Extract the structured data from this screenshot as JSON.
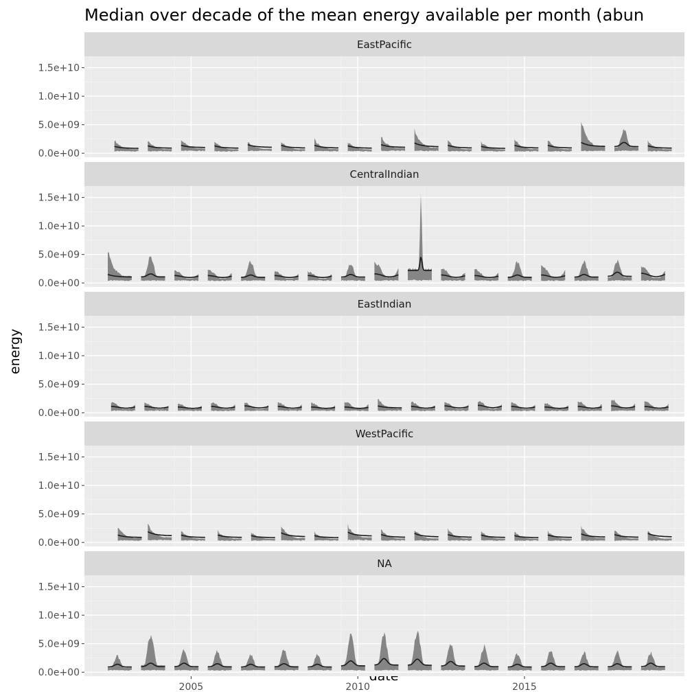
{
  "chart_data": {
    "type": "area",
    "title": "Median over decade of the mean energy available per month (abun",
    "xlabel": "date",
    "ylabel": "energy",
    "x_ticks": [
      "2005",
      "2010",
      "2015"
    ],
    "x_tick_years": [
      2005,
      2010,
      2015
    ],
    "xlim": [
      2001.8,
      2019.8
    ],
    "y_ticks": [
      "0.0e+00",
      "5.0e+09",
      "1.0e+10",
      "1.5e+10"
    ],
    "y_tick_values": [
      0,
      5000000000,
      10000000000,
      15000000000
    ],
    "ylim": [
      -700000000,
      17000000000
    ],
    "grid": true,
    "facets": [
      {
        "name": "EastPacific",
        "start_month": 6,
        "seasons": [
          {
            "year": 2002.7,
            "median": 1200000000.0,
            "low": 500000000.0,
            "high": 2300000000.0,
            "decay": "fall"
          },
          {
            "year": 2003.7,
            "median": 1300000000.0,
            "low": 500000000.0,
            "high": 2200000000.0,
            "decay": "fall"
          },
          {
            "year": 2004.7,
            "median": 1400000000.0,
            "low": 600000000.0,
            "high": 2500000000.0,
            "decay": "fall"
          },
          {
            "year": 2005.7,
            "median": 1300000000.0,
            "low": 500000000.0,
            "high": 2100000000.0,
            "decay": "fall"
          },
          {
            "year": 2006.7,
            "median": 1500000000.0,
            "low": 600000000.0,
            "high": 2000000000.0,
            "decay": "fall"
          },
          {
            "year": 2007.7,
            "median": 1400000000.0,
            "low": 500000000.0,
            "high": 2100000000.0,
            "decay": "fall"
          },
          {
            "year": 2008.7,
            "median": 1400000000.0,
            "low": 500000000.0,
            "high": 2400000000.0,
            "decay": "fall"
          },
          {
            "year": 2009.7,
            "median": 1300000000.0,
            "low": 500000000.0,
            "high": 2000000000.0,
            "decay": "fall"
          },
          {
            "year": 2010.7,
            "median": 1500000000.0,
            "low": 600000000.0,
            "high": 2900000000.0,
            "decay": "fall"
          },
          {
            "year": 2011.7,
            "median": 1800000000.0,
            "low": 600000000.0,
            "high": 4000000000.0,
            "decay": "fall"
          },
          {
            "year": 2012.7,
            "median": 1400000000.0,
            "low": 500000000.0,
            "high": 2200000000.0,
            "decay": "fall"
          },
          {
            "year": 2013.7,
            "median": 1200000000.0,
            "low": 500000000.0,
            "high": 2000000000.0,
            "decay": "fall"
          },
          {
            "year": 2014.7,
            "median": 1400000000.0,
            "low": 500000000.0,
            "high": 2500000000.0,
            "decay": "fall"
          },
          {
            "year": 2015.7,
            "median": 1400000000.0,
            "low": 500000000.0,
            "high": 2300000000.0,
            "decay": "fall"
          },
          {
            "year": 2016.7,
            "median": 1900000000.0,
            "low": 600000000.0,
            "high": 5500000000.0,
            "decay": "fall"
          },
          {
            "year": 2017.7,
            "median": 1900000000.0,
            "low": 600000000.0,
            "high": 4300000000.0,
            "decay": "peak"
          },
          {
            "year": 2018.7,
            "median": 1300000000.0,
            "low": 500000000.0,
            "high": 2100000000.0,
            "decay": "fall"
          }
        ]
      },
      {
        "name": "CentralIndian",
        "start_month": 6,
        "seasons": [
          {
            "year": 2002.5,
            "median": 1500000000.0,
            "low": 600000000.0,
            "high": 5500000000.0,
            "decay": "fall"
          },
          {
            "year": 2003.5,
            "median": 1600000000.0,
            "low": 600000000.0,
            "high": 4700000000.0,
            "decay": "peak"
          },
          {
            "year": 2004.5,
            "median": 1300000000.0,
            "low": 600000000.0,
            "high": 2200000000.0,
            "decay": "flat"
          },
          {
            "year": 2005.5,
            "median": 1300000000.0,
            "low": 600000000.0,
            "high": 2300000000.0,
            "decay": "flat"
          },
          {
            "year": 2006.5,
            "median": 1400000000.0,
            "low": 600000000.0,
            "high": 3700000000.0,
            "decay": "peak"
          },
          {
            "year": 2007.5,
            "median": 1300000000.0,
            "low": 600000000.0,
            "high": 2000000000.0,
            "decay": "flat"
          },
          {
            "year": 2008.5,
            "median": 1300000000.0,
            "low": 600000000.0,
            "high": 2000000000.0,
            "decay": "flat"
          },
          {
            "year": 2009.5,
            "median": 1500000000.0,
            "low": 600000000.0,
            "high": 3300000000.0,
            "decay": "peak"
          },
          {
            "year": 2010.5,
            "median": 1600000000.0,
            "low": 600000000.0,
            "high": 3500000000.0,
            "decay": "flat"
          },
          {
            "year": 2011.5,
            "median": 4600000000.0,
            "low": 700000000.0,
            "high": 14800000000.0,
            "decay": "spike"
          },
          {
            "year": 2012.5,
            "median": 1400000000.0,
            "low": 600000000.0,
            "high": 2600000000.0,
            "decay": "flat"
          },
          {
            "year": 2013.5,
            "median": 1300000000.0,
            "low": 600000000.0,
            "high": 2400000000.0,
            "decay": "flat"
          },
          {
            "year": 2014.5,
            "median": 1400000000.0,
            "low": 600000000.0,
            "high": 3600000000.0,
            "decay": "peak"
          },
          {
            "year": 2015.5,
            "median": 1400000000.0,
            "low": 600000000.0,
            "high": 3000000000.0,
            "decay": "flat"
          },
          {
            "year": 2016.5,
            "median": 1500000000.0,
            "low": 600000000.0,
            "high": 3700000000.0,
            "decay": "peak"
          },
          {
            "year": 2017.5,
            "median": 1900000000.0,
            "low": 600000000.0,
            "high": 3900000000.0,
            "decay": "peak"
          },
          {
            "year": 2018.5,
            "median": 1700000000.0,
            "low": 600000000.0,
            "high": 3000000000.0,
            "decay": "flat"
          }
        ]
      },
      {
        "name": "EastIndian",
        "start_month": 6,
        "seasons": [
          {
            "year": 2002.6,
            "median": 1100000000.0,
            "low": 500000000.0,
            "high": 1800000000.0,
            "decay": "flat"
          },
          {
            "year": 2003.6,
            "median": 1100000000.0,
            "low": 500000000.0,
            "high": 1700000000.0,
            "decay": "flat"
          },
          {
            "year": 2004.6,
            "median": 1000000000.0,
            "low": 500000000.0,
            "high": 1600000000.0,
            "decay": "flat"
          },
          {
            "year": 2005.6,
            "median": 1100000000.0,
            "low": 500000000.0,
            "high": 1800000000.0,
            "decay": "flat"
          },
          {
            "year": 2006.6,
            "median": 1200000000.0,
            "low": 500000000.0,
            "high": 1700000000.0,
            "decay": "flat"
          },
          {
            "year": 2007.6,
            "median": 1100000000.0,
            "low": 500000000.0,
            "high": 1800000000.0,
            "decay": "flat"
          },
          {
            "year": 2008.6,
            "median": 1000000000.0,
            "low": 500000000.0,
            "high": 1700000000.0,
            "decay": "flat"
          },
          {
            "year": 2009.6,
            "median": 1000000000.0,
            "low": 500000000.0,
            "high": 1900000000.0,
            "decay": "flat"
          },
          {
            "year": 2010.6,
            "median": 1200000000.0,
            "low": 500000000.0,
            "high": 2500000000.0,
            "decay": "fall"
          },
          {
            "year": 2011.6,
            "median": 1100000000.0,
            "low": 500000000.0,
            "high": 1800000000.0,
            "decay": "flat"
          },
          {
            "year": 2012.6,
            "median": 1200000000.0,
            "low": 500000000.0,
            "high": 1900000000.0,
            "decay": "flat"
          },
          {
            "year": 2013.6,
            "median": 1300000000.0,
            "low": 500000000.0,
            "high": 2000000000.0,
            "decay": "flat"
          },
          {
            "year": 2014.6,
            "median": 1100000000.0,
            "low": 500000000.0,
            "high": 1800000000.0,
            "decay": "flat"
          },
          {
            "year": 2015.6,
            "median": 1000000000.0,
            "low": 500000000.0,
            "high": 1700000000.0,
            "decay": "flat"
          },
          {
            "year": 2016.6,
            "median": 1100000000.0,
            "low": 500000000.0,
            "high": 2000000000.0,
            "decay": "flat"
          },
          {
            "year": 2017.6,
            "median": 1200000000.0,
            "low": 500000000.0,
            "high": 2300000000.0,
            "decay": "flat"
          },
          {
            "year": 2018.6,
            "median": 1100000000.0,
            "low": 500000000.0,
            "high": 2000000000.0,
            "decay": "flat"
          }
        ]
      },
      {
        "name": "WestPacific",
        "start_month": 6,
        "seasons": [
          {
            "year": 2002.8,
            "median": 1300000000.0,
            "low": 500000000.0,
            "high": 2800000000.0,
            "decay": "fall"
          },
          {
            "year": 2003.7,
            "median": 1900000000.0,
            "low": 600000000.0,
            "high": 3100000000.0,
            "decay": "fall"
          },
          {
            "year": 2004.7,
            "median": 1300000000.0,
            "low": 500000000.0,
            "high": 2000000000.0,
            "decay": "fall"
          },
          {
            "year": 2005.8,
            "median": 1300000000.0,
            "low": 500000000.0,
            "high": 2000000000.0,
            "decay": "fall"
          },
          {
            "year": 2006.8,
            "median": 1200000000.0,
            "low": 500000000.0,
            "high": 1800000000.0,
            "decay": "fall"
          },
          {
            "year": 2007.7,
            "median": 1700000000.0,
            "low": 500000000.0,
            "high": 2900000000.0,
            "decay": "fall"
          },
          {
            "year": 2008.7,
            "median": 1200000000.0,
            "low": 500000000.0,
            "high": 1800000000.0,
            "decay": "fall"
          },
          {
            "year": 2009.7,
            "median": 1800000000.0,
            "low": 600000000.0,
            "high": 3000000000.0,
            "decay": "fall"
          },
          {
            "year": 2010.7,
            "median": 1400000000.0,
            "low": 500000000.0,
            "high": 2200000000.0,
            "decay": "fall"
          },
          {
            "year": 2011.7,
            "median": 1600000000.0,
            "low": 500000000.0,
            "high": 2300000000.0,
            "decay": "fall"
          },
          {
            "year": 2012.7,
            "median": 1400000000.0,
            "low": 500000000.0,
            "high": 2300000000.0,
            "decay": "fall"
          },
          {
            "year": 2013.7,
            "median": 1300000000.0,
            "low": 500000000.0,
            "high": 2000000000.0,
            "decay": "fall"
          },
          {
            "year": 2014.7,
            "median": 1200000000.0,
            "low": 500000000.0,
            "high": 1900000000.0,
            "decay": "fall"
          },
          {
            "year": 2015.7,
            "median": 1300000000.0,
            "low": 500000000.0,
            "high": 2000000000.0,
            "decay": "fall"
          },
          {
            "year": 2016.7,
            "median": 1500000000.0,
            "low": 500000000.0,
            "high": 2800000000.0,
            "decay": "fall"
          },
          {
            "year": 2017.7,
            "median": 1400000000.0,
            "low": 500000000.0,
            "high": 2200000000.0,
            "decay": "fall"
          },
          {
            "year": 2018.7,
            "median": 1600000000.0,
            "low": 500000000.0,
            "high": 2000000000.0,
            "decay": "fall"
          }
        ]
      },
      {
        "name": "NA",
        "start_month": 6,
        "seasons": [
          {
            "year": 2002.5,
            "median": 1400000000.0,
            "low": 500000000.0,
            "high": 2800000000.0,
            "decay": "peak"
          },
          {
            "year": 2003.5,
            "median": 1600000000.0,
            "low": 500000000.0,
            "high": 6700000000.0,
            "decay": "peak"
          },
          {
            "year": 2004.5,
            "median": 1600000000.0,
            "low": 500000000.0,
            "high": 3900000000.0,
            "decay": "peak"
          },
          {
            "year": 2005.5,
            "median": 1500000000.0,
            "low": 500000000.0,
            "high": 3600000000.0,
            "decay": "peak"
          },
          {
            "year": 2006.5,
            "median": 1400000000.0,
            "low": 500000000.0,
            "high": 3100000000.0,
            "decay": "peak"
          },
          {
            "year": 2007.5,
            "median": 1500000000.0,
            "low": 500000000.0,
            "high": 4000000000.0,
            "decay": "peak"
          },
          {
            "year": 2008.5,
            "median": 1400000000.0,
            "low": 500000000.0,
            "high": 3000000000.0,
            "decay": "peak"
          },
          {
            "year": 2009.5,
            "median": 2000000000.0,
            "low": 500000000.0,
            "high": 6400000000.0,
            "decay": "peak"
          },
          {
            "year": 2010.5,
            "median": 2400000000.0,
            "low": 500000000.0,
            "high": 6800000000.0,
            "decay": "peak"
          },
          {
            "year": 2011.5,
            "median": 2300000000.0,
            "low": 500000000.0,
            "high": 7200000000.0,
            "decay": "peak"
          },
          {
            "year": 2012.5,
            "median": 1900000000.0,
            "low": 500000000.0,
            "high": 4800000000.0,
            "decay": "peak"
          },
          {
            "year": 2013.5,
            "median": 1600000000.0,
            "low": 500000000.0,
            "high": 4500000000.0,
            "decay": "peak"
          },
          {
            "year": 2014.5,
            "median": 1400000000.0,
            "low": 500000000.0,
            "high": 3200000000.0,
            "decay": "peak"
          },
          {
            "year": 2015.5,
            "median": 1600000000.0,
            "low": 500000000.0,
            "high": 3800000000.0,
            "decay": "peak"
          },
          {
            "year": 2016.5,
            "median": 1500000000.0,
            "low": 500000000.0,
            "high": 3400000000.0,
            "decay": "peak"
          },
          {
            "year": 2017.5,
            "median": 1500000000.0,
            "low": 500000000.0,
            "high": 3500000000.0,
            "decay": "peak"
          },
          {
            "year": 2018.5,
            "median": 1600000000.0,
            "low": 500000000.0,
            "high": 3400000000.0,
            "decay": "peak"
          }
        ]
      }
    ],
    "colors": {
      "panel": "#ebebeb",
      "strip": "#d9d9d9",
      "grid_major": "#ffffff",
      "ribbon": "#7f7f7f",
      "median_line": "#1a1a1a"
    }
  }
}
